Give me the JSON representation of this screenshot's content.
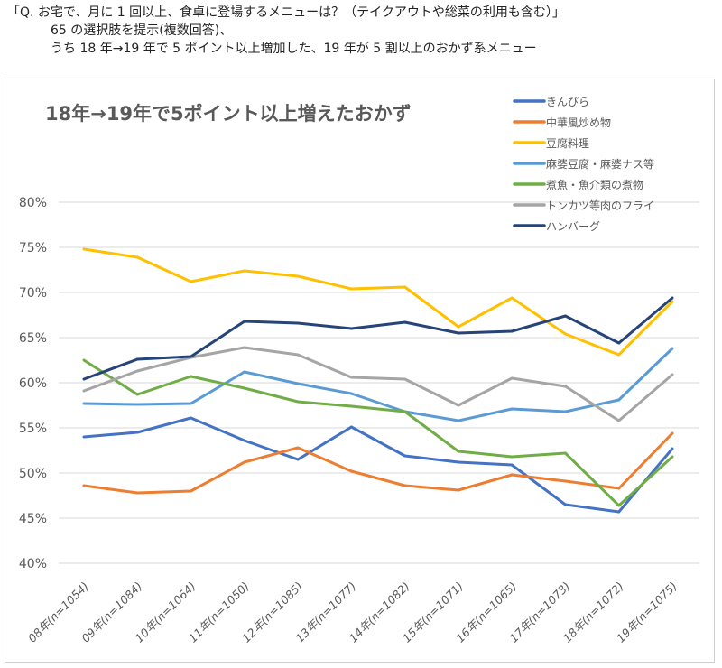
{
  "question": {
    "line1": "「Q. お宅で、月に 1 回以上、食卓に登場するメニューは？（テイクアウトや総菜の利用も含む）」",
    "line2": "65 の選択肢を提示(複数回答)、",
    "line3": "うち 18 年→19 年で 5 ポイント以上増加した、19 年が 5 割以上のおかず系メニュー"
  },
  "chart_data": {
    "type": "line",
    "title": "18年→19年で5ポイント以上増えたおかず",
    "categories": [
      "08年(n=1054)",
      "09年(n=1084)",
      "10年(n=1064)",
      "11年(n=1050)",
      "12年(n=1085)",
      "13年(n=1077)",
      "14年(n=1082)",
      "15年(n=1071)",
      "16年(n=1065)",
      "17年(n=1073)",
      "18年(n=1072)",
      "19年(n=1075)"
    ],
    "ylim": [
      40,
      80
    ],
    "yticks": [
      "40%",
      "45%",
      "50%",
      "55%",
      "60%",
      "65%",
      "70%",
      "75%",
      "80%"
    ],
    "grid": true,
    "legend_position": "top-right",
    "series": [
      {
        "name": "きんぴら",
        "color": "#4472C4",
        "values": [
          54.0,
          54.5,
          56.1,
          53.6,
          51.5,
          55.1,
          51.9,
          51.2,
          50.9,
          46.5,
          45.7,
          52.7
        ]
      },
      {
        "name": "中華風炒め物",
        "color": "#ED7D31",
        "values": [
          48.6,
          47.8,
          48.0,
          51.2,
          52.8,
          50.2,
          48.6,
          48.1,
          49.8,
          49.1,
          48.3,
          54.4
        ]
      },
      {
        "name": "豆腐料理",
        "color": "#FFC000",
        "values": [
          74.8,
          73.9,
          71.2,
          72.4,
          71.8,
          70.4,
          70.6,
          66.2,
          69.4,
          65.4,
          63.1,
          69.0
        ]
      },
      {
        "name": "麻婆豆腐・麻婆ナス等",
        "color": "#5B9BD5",
        "values": [
          57.7,
          57.6,
          57.7,
          61.2,
          59.9,
          58.8,
          56.8,
          55.8,
          57.1,
          56.8,
          58.1,
          63.8
        ]
      },
      {
        "name": "煮魚・魚介類の煮物",
        "color": "#70AD47",
        "values": [
          62.5,
          58.7,
          60.7,
          59.4,
          57.9,
          57.4,
          56.8,
          52.4,
          51.8,
          52.2,
          46.4,
          51.8
        ]
      },
      {
        "name": "トンカツ等肉のフライ",
        "color": "#A5A5A5",
        "values": [
          59.1,
          61.3,
          62.8,
          63.9,
          63.1,
          60.6,
          60.4,
          57.5,
          60.5,
          59.6,
          55.8,
          60.9
        ]
      },
      {
        "name": "ハンバーグ",
        "color": "#264478",
        "values": [
          60.4,
          62.6,
          62.9,
          66.8,
          66.6,
          66.0,
          66.7,
          65.5,
          65.7,
          67.4,
          64.4,
          69.4
        ]
      }
    ]
  }
}
